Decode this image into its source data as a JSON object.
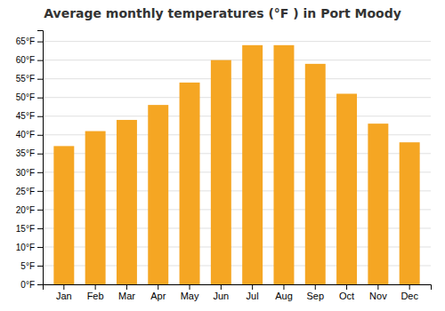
{
  "chart_data": {
    "type": "bar",
    "title": "Average monthly temperatures (°F ) in Port Moody",
    "categories": [
      "Jan",
      "Feb",
      "Mar",
      "Apr",
      "May",
      "Jun",
      "Jul",
      "Aug",
      "Sep",
      "Oct",
      "Nov",
      "Dec"
    ],
    "values": [
      37,
      41,
      44,
      48,
      54,
      60,
      64,
      64,
      59,
      51,
      43,
      38
    ],
    "color": "#F5A623",
    "ylim": [
      0,
      68
    ],
    "yticks": [
      {
        "value": 0,
        "label": "0°F"
      },
      {
        "value": 5,
        "label": "5°F"
      },
      {
        "value": 10,
        "label": "10°F"
      },
      {
        "value": 15,
        "label": "15°F"
      },
      {
        "value": 20,
        "label": "20°F"
      },
      {
        "value": 25,
        "label": "25°F"
      },
      {
        "value": 30,
        "label": "30°F"
      },
      {
        "value": 35,
        "label": "35°F"
      },
      {
        "value": 40,
        "label": "40°F"
      },
      {
        "value": 45,
        "label": "45°F"
      },
      {
        "value": 50,
        "label": "50°F"
      },
      {
        "value": 55,
        "label": "55°F"
      },
      {
        "value": 60,
        "label": "60°F"
      },
      {
        "value": 65,
        "label": "65°F"
      }
    ],
    "grid": true
  }
}
